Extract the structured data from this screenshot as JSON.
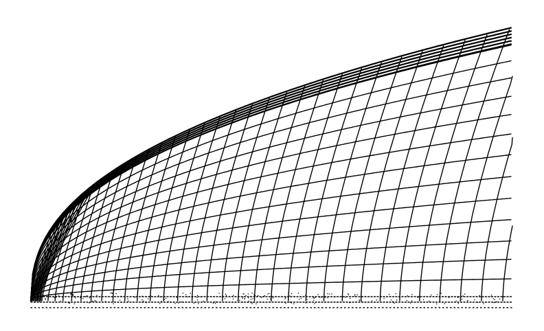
{
  "diagram": {
    "type": "curvilinear-mesh",
    "stroke_color": "#000000",
    "background_color": "#ffffff",
    "outer_boundary_count": 6,
    "ray_count": 34,
    "floor_row_count": 3
  }
}
